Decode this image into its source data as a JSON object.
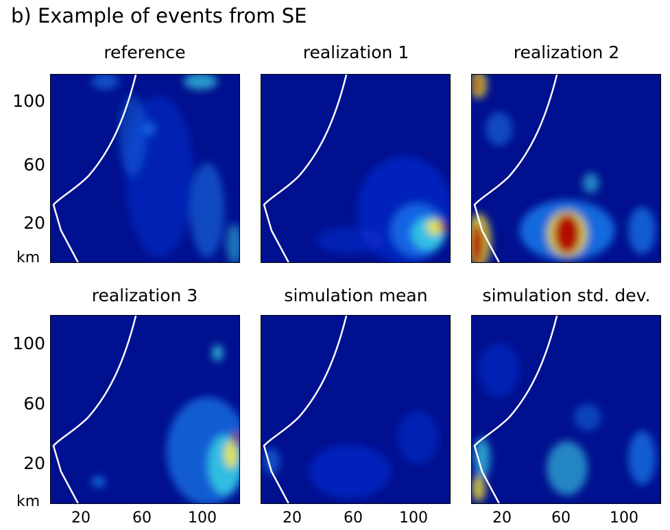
{
  "figure_title": "b) Example of events from SE",
  "colors": {
    "background": "#00108f",
    "coastline": "#ffffff",
    "low": "#0a2fd8",
    "mid": "#1e90ff",
    "cyan": "#3ad6e6",
    "yellow": "#f5e63a",
    "red": "#b00000"
  },
  "chart_data": [
    {
      "type": "heatmap",
      "title": "reference",
      "yticks": [
        "100",
        "60",
        "20"
      ],
      "y_unit": "km",
      "xticks": []
    },
    {
      "type": "heatmap",
      "title": "realization 1",
      "yticks": [],
      "xticks": []
    },
    {
      "type": "heatmap",
      "title": "realization 2",
      "yticks": [],
      "xticks": []
    },
    {
      "type": "heatmap",
      "title": "realization 3",
      "yticks": [
        "100",
        "60",
        "20"
      ],
      "y_unit": "km",
      "xticks": [
        "20",
        "60",
        "100"
      ]
    },
    {
      "type": "heatmap",
      "title": "simulation mean",
      "yticks": [],
      "xticks": [
        "20",
        "60",
        "100"
      ]
    },
    {
      "type": "heatmap",
      "title": "simulation std. dev.",
      "yticks": [],
      "xticks": [
        "20",
        "60",
        "100"
      ]
    }
  ]
}
